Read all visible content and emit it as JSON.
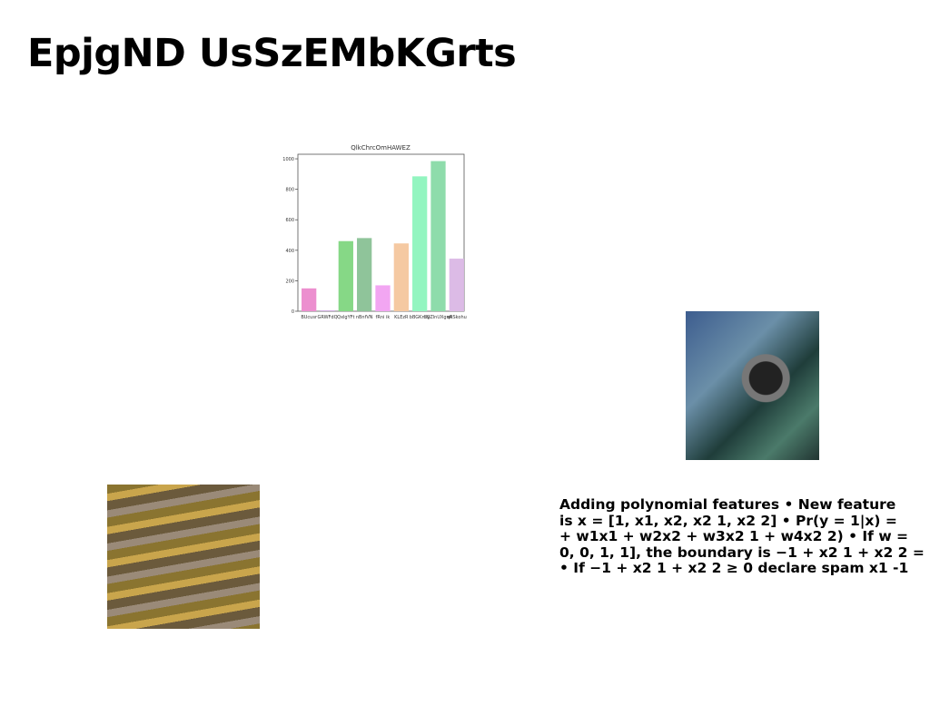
{
  "title": "EpjgND UsSzEMbKGrts",
  "figure": {
    "chart_data": {
      "type": "bar",
      "title": "QlkChrcOmHAWEZ",
      "categories": [
        "BUcusr",
        "GRWFdQ",
        "QxlgYFt",
        "nBnfVN",
        "fRni ik",
        "KLEzR",
        "bBGKrnQ",
        "OyZlnUXgwk",
        "qRSkohu"
      ],
      "values": [
        150,
        5,
        460,
        480,
        170,
        445,
        885,
        985,
        345
      ],
      "colors": [
        "#ec8fcf",
        "#c9a0dc",
        "#86d886",
        "#8fc49a",
        "#f2a6f2",
        "#f5c9a2",
        "#93f5c0",
        "#8edcab",
        "#dcbbe6"
      ],
      "ylim": [
        0,
        1030
      ],
      "yticks": [
        0,
        200,
        400,
        600,
        800,
        1000
      ]
    }
  },
  "text": {
    "lines": [
      "Adding polynomial features • New feature",
      "is x = [1, x1, x2, x2 1, x2 2] • Pr(y = 1|x) =",
      "+ w1x1 + w2x2 + w3x2 1 + w4x2 2) • If w =",
      "0, 0, 1, 1], the boundary is −1 + x2 1 + x2 2 =",
      "• If −1 + x2 1 + x2 2 ≥ 0 declare spam x1 -1"
    ]
  }
}
